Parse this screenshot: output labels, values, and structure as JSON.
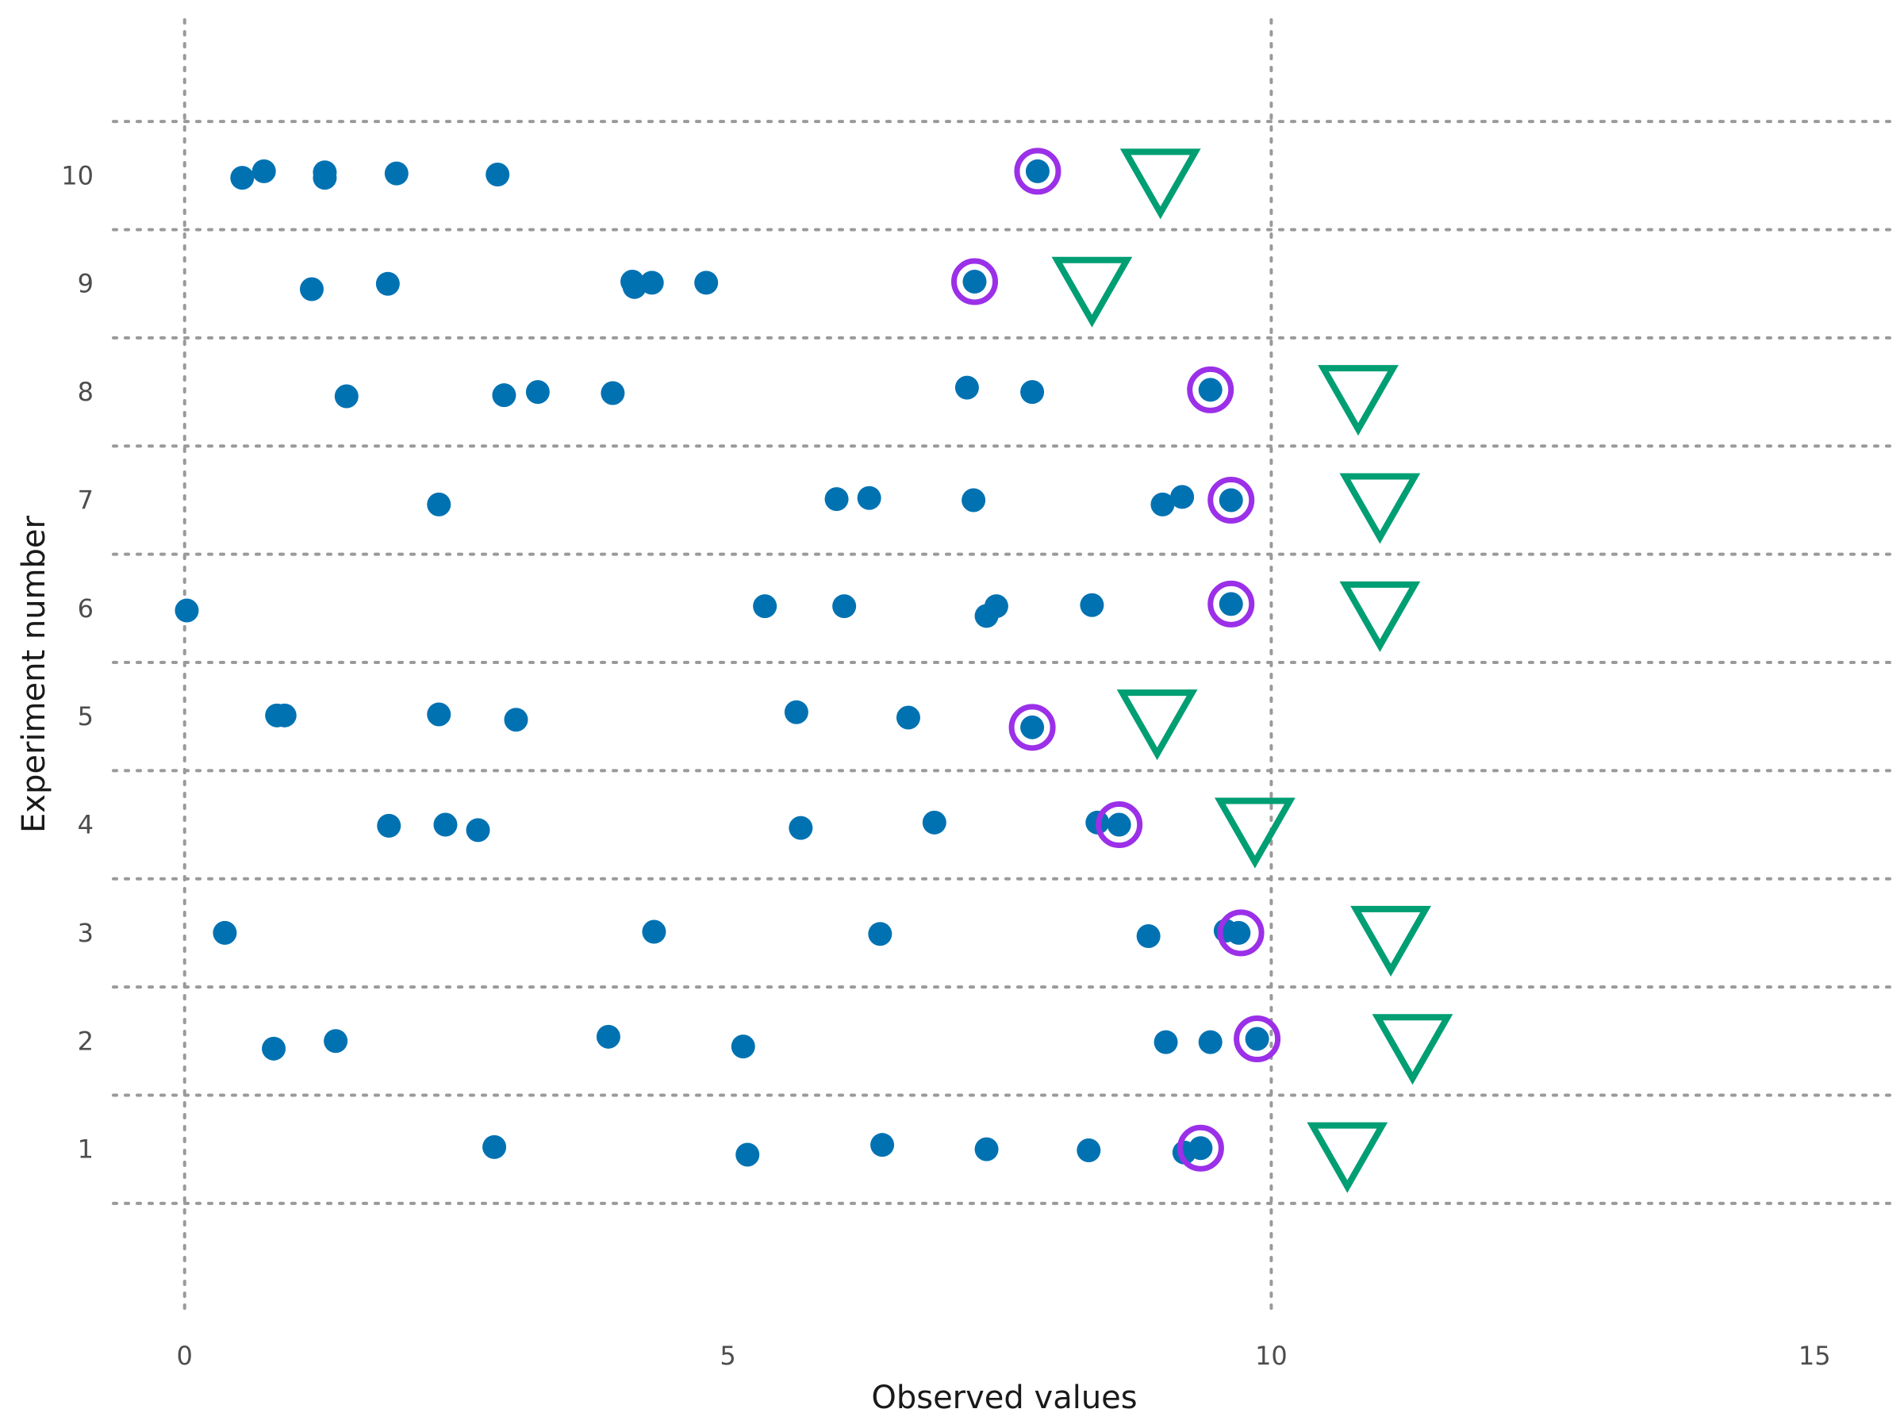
{
  "chart_data": {
    "type": "scatter",
    "title": "",
    "xlabel": "Observed values",
    "ylabel": "Experiment number",
    "xlim": [
      -0.75,
      15.75
    ],
    "ylim": [
      -0.55,
      11.55
    ],
    "x_ticks": [
      0,
      5,
      10,
      15
    ],
    "x_tick_labels": [
      "0",
      "5",
      "10",
      "15"
    ],
    "y_ticks": [
      1,
      2,
      3,
      4,
      5,
      6,
      7,
      8,
      9,
      10
    ],
    "y_tick_labels": [
      "1",
      "2",
      "3",
      "4",
      "5",
      "6",
      "7",
      "8",
      "9",
      "10"
    ],
    "grid": {
      "vertical_at": [
        0,
        10
      ],
      "horizontal_at": [
        0.5,
        1.5,
        2.5,
        3.5,
        4.5,
        5.5,
        6.5,
        7.5,
        8.5,
        9.5,
        10.5
      ],
      "style": "dotted"
    },
    "legend": "none",
    "colors": {
      "observations": "#0072B2",
      "highlight_ring": "#9B30E8",
      "triangle": "#009E73",
      "grid": "#9a9a9a",
      "text": "#4d4d4d"
    },
    "series": [
      {
        "marker": "filled-circle",
        "points": [
          {
            "x": 2.85,
            "y": 1.02
          },
          {
            "x": 5.18,
            "y": 0.95
          },
          {
            "x": 6.42,
            "y": 1.04
          },
          {
            "x": 7.38,
            "y": 1.0
          },
          {
            "x": 8.32,
            "y": 0.99
          },
          {
            "x": 9.2,
            "y": 0.97
          },
          {
            "x": 9.35,
            "y": 1.01
          },
          {
            "x": 0.82,
            "y": 1.93
          },
          {
            "x": 1.39,
            "y": 2.0
          },
          {
            "x": 3.9,
            "y": 2.04
          },
          {
            "x": 5.14,
            "y": 1.95
          },
          {
            "x": 9.03,
            "y": 1.99
          },
          {
            "x": 9.44,
            "y": 1.99
          },
          {
            "x": 9.87,
            "y": 2.02
          },
          {
            "x": 0.37,
            "y": 3.0
          },
          {
            "x": 4.32,
            "y": 3.01
          },
          {
            "x": 6.4,
            "y": 2.99
          },
          {
            "x": 8.87,
            "y": 2.97
          },
          {
            "x": 9.58,
            "y": 3.02
          },
          {
            "x": 9.7,
            "y": 3.0
          },
          {
            "x": 1.88,
            "y": 3.99
          },
          {
            "x": 2.4,
            "y": 4.0
          },
          {
            "x": 2.7,
            "y": 3.95
          },
          {
            "x": 5.67,
            "y": 3.97
          },
          {
            "x": 6.9,
            "y": 4.02
          },
          {
            "x": 8.4,
            "y": 4.02
          },
          {
            "x": 8.6,
            "y": 4.0
          },
          {
            "x": 0.85,
            "y": 5.01
          },
          {
            "x": 0.92,
            "y": 5.01
          },
          {
            "x": 2.34,
            "y": 5.02
          },
          {
            "x": 3.05,
            "y": 4.97
          },
          {
            "x": 5.63,
            "y": 5.04
          },
          {
            "x": 6.66,
            "y": 4.99
          },
          {
            "x": 7.8,
            "y": 4.9
          },
          {
            "x": 0.02,
            "y": 5.98
          },
          {
            "x": 5.34,
            "y": 6.02
          },
          {
            "x": 6.07,
            "y": 6.02
          },
          {
            "x": 7.38,
            "y": 5.93
          },
          {
            "x": 7.47,
            "y": 6.02
          },
          {
            "x": 8.35,
            "y": 6.03
          },
          {
            "x": 9.63,
            "y": 6.04
          },
          {
            "x": 2.34,
            "y": 6.96
          },
          {
            "x": 6.0,
            "y": 7.01
          },
          {
            "x": 6.3,
            "y": 7.02
          },
          {
            "x": 7.26,
            "y": 7.0
          },
          {
            "x": 9.0,
            "y": 6.96
          },
          {
            "x": 9.18,
            "y": 7.03
          },
          {
            "x": 9.63,
            "y": 7.0
          },
          {
            "x": 1.49,
            "y": 7.96
          },
          {
            "x": 2.94,
            "y": 7.97
          },
          {
            "x": 3.25,
            "y": 8.0
          },
          {
            "x": 3.94,
            "y": 7.99
          },
          {
            "x": 7.2,
            "y": 8.04
          },
          {
            "x": 7.8,
            "y": 8.0
          },
          {
            "x": 9.44,
            "y": 8.02
          },
          {
            "x": 1.17,
            "y": 8.95
          },
          {
            "x": 1.87,
            "y": 9.0
          },
          {
            "x": 4.12,
            "y": 9.02
          },
          {
            "x": 4.14,
            "y": 8.97
          },
          {
            "x": 4.3,
            "y": 9.01
          },
          {
            "x": 4.8,
            "y": 9.01
          },
          {
            "x": 7.27,
            "y": 9.02
          },
          {
            "x": 0.53,
            "y": 9.98
          },
          {
            "x": 0.73,
            "y": 10.04
          },
          {
            "x": 1.29,
            "y": 10.03
          },
          {
            "x": 1.29,
            "y": 9.98
          },
          {
            "x": 1.95,
            "y": 10.02
          },
          {
            "x": 2.88,
            "y": 10.01
          },
          {
            "x": 7.85,
            "y": 10.04
          }
        ]
      },
      {
        "marker": "open-circle",
        "points": [
          {
            "x": 9.35,
            "y": 1.01
          },
          {
            "x": 9.87,
            "y": 2.02
          },
          {
            "x": 9.72,
            "y": 3.0
          },
          {
            "x": 8.6,
            "y": 4.0
          },
          {
            "x": 7.8,
            "y": 4.9
          },
          {
            "x": 9.63,
            "y": 6.04
          },
          {
            "x": 9.63,
            "y": 7.0
          },
          {
            "x": 9.44,
            "y": 8.02
          },
          {
            "x": 7.27,
            "y": 9.02
          },
          {
            "x": 7.85,
            "y": 10.04
          }
        ]
      },
      {
        "marker": "open-triangle-down",
        "points": [
          {
            "x": 10.7,
            "y": 1.0
          },
          {
            "x": 11.3,
            "y": 2.0
          },
          {
            "x": 11.1,
            "y": 3.0
          },
          {
            "x": 9.85,
            "y": 4.0
          },
          {
            "x": 8.95,
            "y": 5.0
          },
          {
            "x": 11.0,
            "y": 6.0
          },
          {
            "x": 11.0,
            "y": 7.0
          },
          {
            "x": 10.8,
            "y": 8.0
          },
          {
            "x": 8.35,
            "y": 9.0
          },
          {
            "x": 8.98,
            "y": 10.0
          }
        ]
      }
    ]
  }
}
